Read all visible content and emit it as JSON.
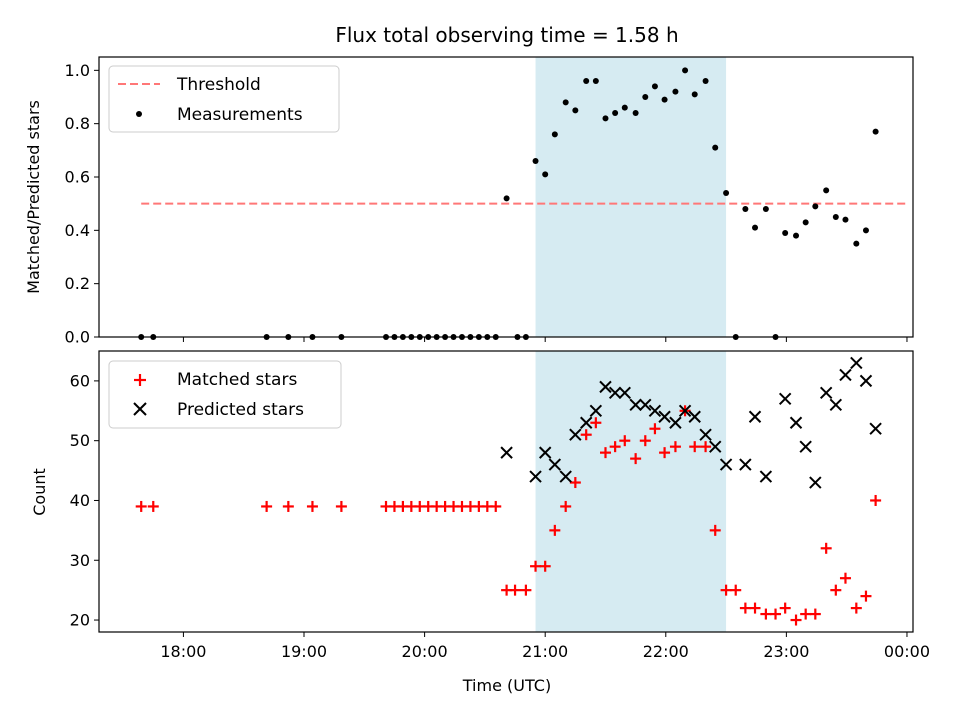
{
  "chart_data": {
    "title": "Flux total observing time = 1.58 h",
    "xlabel": "Time (UTC)",
    "x_ticks": [
      "18:00",
      "19:00",
      "20:00",
      "21:00",
      "22:00",
      "23:00",
      "00:00"
    ],
    "x_tick_hours": [
      18,
      19,
      20,
      21,
      22,
      23,
      24
    ],
    "xlim_hours": [
      17.3,
      24.05
    ],
    "observing_window_hours": [
      20.92,
      22.5
    ],
    "top": {
      "type": "scatter",
      "ylabel": "Matched/Predicted stars",
      "ylim": [
        0,
        1.05
      ],
      "y_ticks": [
        "0.0",
        "0.2",
        "0.4",
        "0.6",
        "0.8",
        "1.0"
      ],
      "y_tick_values": [
        0,
        0.2,
        0.4,
        0.6,
        0.8,
        1.0
      ],
      "threshold": {
        "label": "Threshold",
        "value": 0.5,
        "x_range": [
          17.65,
          24.0
        ],
        "color": "#ff7777"
      },
      "measurements": {
        "label": "Measurements",
        "color": "#000000",
        "x": [
          17.65,
          17.75,
          18.69,
          18.87,
          19.07,
          19.31,
          19.68,
          19.75,
          19.82,
          19.89,
          19.96,
          20.03,
          20.1,
          20.17,
          20.24,
          20.31,
          20.38,
          20.45,
          20.52,
          20.59,
          20.68,
          20.77,
          20.84,
          20.92,
          21.0,
          21.08,
          21.17,
          21.25,
          21.34,
          21.42,
          21.5,
          21.58,
          21.66,
          21.75,
          21.83,
          21.91,
          21.99,
          22.08,
          22.16,
          22.24,
          22.33,
          22.41,
          22.5,
          22.58,
          22.66,
          22.74,
          22.83,
          22.91,
          22.99,
          23.08,
          23.16,
          23.24,
          23.33,
          23.41,
          23.49,
          23.58,
          23.66,
          23.74
        ],
        "y": [
          0.0,
          0.0,
          0.0,
          0.0,
          0.0,
          0.0,
          0.0,
          0.0,
          0.0,
          0.0,
          0.0,
          0.0,
          0.0,
          0.0,
          0.0,
          0.0,
          0.0,
          0.0,
          0.0,
          0.0,
          0.52,
          0.0,
          0.0,
          0.66,
          0.61,
          0.76,
          0.88,
          0.85,
          0.96,
          0.96,
          0.82,
          0.84,
          0.86,
          0.84,
          0.9,
          0.94,
          0.89,
          0.92,
          1.0,
          0.91,
          0.96,
          0.71,
          0.54,
          0.0,
          0.48,
          0.41,
          0.48,
          0.0,
          0.39,
          0.38,
          0.43,
          0.49,
          0.55,
          0.45,
          0.44,
          0.35,
          0.4,
          0.77
        ]
      }
    },
    "bottom": {
      "type": "scatter",
      "ylabel": "Count",
      "ylim": [
        18,
        65
      ],
      "y_ticks": [
        "20",
        "30",
        "40",
        "50",
        "60"
      ],
      "y_tick_values": [
        20,
        30,
        40,
        50,
        60
      ],
      "matched": {
        "label": "Matched stars",
        "color": "#ff0000",
        "x": [
          17.65,
          17.75,
          18.69,
          18.87,
          19.07,
          19.31,
          19.68,
          19.75,
          19.82,
          19.89,
          19.96,
          20.03,
          20.1,
          20.17,
          20.24,
          20.31,
          20.38,
          20.45,
          20.52,
          20.59,
          20.68,
          20.75,
          20.84,
          20.92,
          21.0,
          21.08,
          21.17,
          21.25,
          21.34,
          21.42,
          21.5,
          21.58,
          21.66,
          21.75,
          21.83,
          21.91,
          21.99,
          22.08,
          22.16,
          22.24,
          22.33,
          22.41,
          22.5,
          22.58,
          22.66,
          22.74,
          22.83,
          22.91,
          22.99,
          23.08,
          23.16,
          23.24,
          23.33,
          23.41,
          23.49,
          23.58,
          23.66,
          23.74
        ],
        "y": [
          39,
          39,
          39,
          39,
          39,
          39,
          39,
          39,
          39,
          39,
          39,
          39,
          39,
          39,
          39,
          39,
          39,
          39,
          39,
          39,
          25,
          25,
          25,
          29,
          29,
          35,
          39,
          43,
          51,
          53,
          48,
          49,
          50,
          47,
          50,
          52,
          48,
          49,
          55,
          49,
          49,
          35,
          25,
          25,
          22,
          22,
          21,
          21,
          22,
          20,
          21,
          21,
          32,
          25,
          27,
          22,
          24,
          40
        ]
      },
      "predicted": {
        "label": "Predicted stars",
        "color": "#000000",
        "x": [
          20.68,
          20.92,
          21.0,
          21.08,
          21.17,
          21.25,
          21.34,
          21.42,
          21.5,
          21.58,
          21.66,
          21.75,
          21.83,
          21.91,
          21.99,
          22.08,
          22.16,
          22.24,
          22.33,
          22.41,
          22.5,
          22.66,
          22.74,
          22.83,
          22.99,
          23.08,
          23.16,
          23.24,
          23.33,
          23.41,
          23.49,
          23.58,
          23.66,
          23.74
        ],
        "y": [
          48,
          44,
          48,
          46,
          44,
          51,
          53,
          55,
          59,
          58,
          58,
          56,
          56,
          55,
          54,
          53,
          55,
          54,
          51,
          49,
          46,
          46,
          54,
          44,
          57,
          53,
          49,
          43,
          58,
          56,
          61,
          63,
          60,
          52
        ]
      }
    },
    "colors": {
      "shade": "#add8e6"
    }
  }
}
